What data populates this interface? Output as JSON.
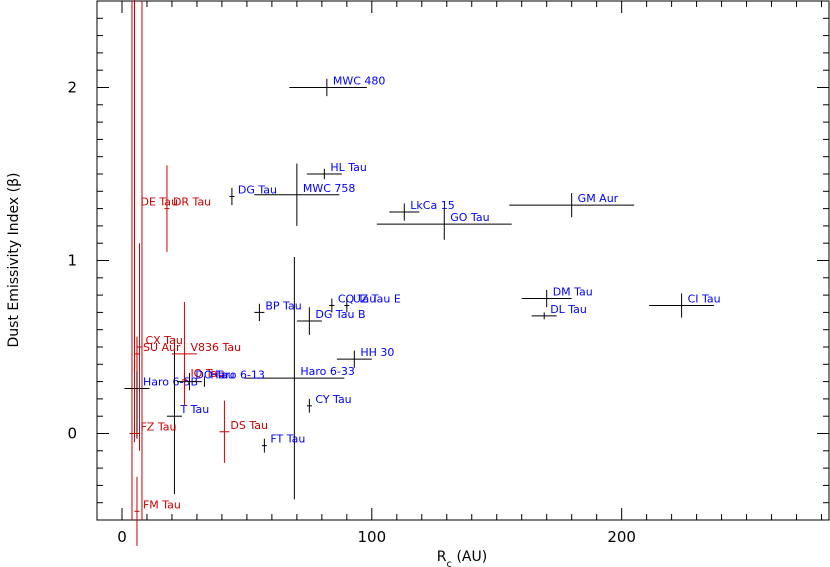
{
  "chart_data": {
    "type": "scatter",
    "title": "",
    "xlabel": "R_c (AU)",
    "xlabel_main": "R",
    "xlabel_sub": "c",
    "xlabel_unit": " (AU)",
    "ylabel": "Dust Emissivity Index (β)",
    "xlim": [
      -10,
      283
    ],
    "ylim": [
      -0.5,
      2.5
    ],
    "x_ticks": [
      0,
      100,
      200
    ],
    "y_ticks": [
      0,
      1,
      2
    ],
    "x_minor_step": 10,
    "y_minor_step": 0.1,
    "grid": false,
    "legend": "none",
    "colors": {
      "black": "#000000",
      "blue": "#0000ff",
      "red": "#cc0000",
      "red_line": "#cc0000"
    },
    "points": [
      {
        "name": "MWC 480",
        "x": 82,
        "y": 2.0,
        "xerr": [
          15,
          16
        ],
        "yerr": [
          0.05,
          0.05
        ],
        "color": "black",
        "label_color": "blue",
        "label_offset": "right-up"
      },
      {
        "name": "HL Tau",
        "x": 81,
        "y": 1.5,
        "xerr": [
          7,
          7
        ],
        "yerr": [
          0.03,
          0.03
        ],
        "color": "black",
        "label_color": "blue",
        "label_offset": "right-up"
      },
      {
        "name": "DG Tau",
        "x": 44,
        "y": 1.37,
        "xerr": [
          1,
          1
        ],
        "yerr": [
          0.05,
          0.05
        ],
        "color": "black",
        "label_color": "blue",
        "label_offset": "right-up"
      },
      {
        "name": "MWC 758",
        "x": 70,
        "y": 1.38,
        "xerr": [
          17,
          17
        ],
        "yerr": [
          0.18,
          0.18
        ],
        "color": "black",
        "label_color": "blue",
        "label_offset": "right-up"
      },
      {
        "name": "LkCa 15",
        "x": 113,
        "y": 1.28,
        "xerr": [
          6,
          6
        ],
        "yerr": [
          0.05,
          0.05
        ],
        "color": "black",
        "label_color": "blue",
        "label_offset": "right-up"
      },
      {
        "name": "GO Tau",
        "x": 129,
        "y": 1.21,
        "xerr": [
          27,
          27
        ],
        "yerr": [
          0.09,
          0.09
        ],
        "color": "black",
        "label_color": "blue",
        "label_offset": "right-up"
      },
      {
        "name": "GM Aur",
        "x": 180,
        "y": 1.32,
        "xerr": [
          25,
          25
        ],
        "yerr": [
          0.07,
          0.07
        ],
        "color": "black",
        "label_color": "blue",
        "label_offset": "right-up"
      },
      {
        "name": "DM Tau",
        "x": 170,
        "y": 0.78,
        "xerr": [
          10,
          10
        ],
        "yerr": [
          0.05,
          0.05
        ],
        "color": "black",
        "label_color": "blue",
        "label_offset": "right-up"
      },
      {
        "name": "DL Tau",
        "x": 169,
        "y": 0.68,
        "xerr": [
          5,
          5
        ],
        "yerr": [
          0.02,
          0.02
        ],
        "color": "black",
        "label_color": "blue",
        "label_offset": "right-up"
      },
      {
        "name": "CI Tau",
        "x": 224,
        "y": 0.74,
        "xerr": [
          13,
          13
        ],
        "yerr": [
          0.07,
          0.07
        ],
        "color": "black",
        "label_color": "blue",
        "label_offset": "right-up"
      },
      {
        "name": "BP Tau",
        "x": 55,
        "y": 0.7,
        "xerr": [
          2,
          2
        ],
        "yerr": [
          0.05,
          0.05
        ],
        "color": "black",
        "label_color": "blue",
        "label_offset": "right-up"
      },
      {
        "name": "CQ Tau",
        "x": 84,
        "y": 0.74,
        "xerr": [
          1,
          1
        ],
        "yerr": [
          0.04,
          0.04
        ],
        "color": "black",
        "label_color": "blue",
        "label_offset": "right-up"
      },
      {
        "name": "UZ Tau E",
        "x": 90,
        "y": 0.74,
        "xerr": [
          1,
          1
        ],
        "yerr": [
          0.04,
          0.04
        ],
        "color": "black",
        "label_color": "blue",
        "label_offset": "right-up"
      },
      {
        "name": "DG Tau B",
        "x": 75,
        "y": 0.65,
        "xerr": [
          5,
          5
        ],
        "yerr": [
          0.08,
          0.08
        ],
        "color": "black",
        "label_color": "blue",
        "label_offset": "right-up"
      },
      {
        "name": "HH 30",
        "x": 93,
        "y": 0.43,
        "xerr": [
          7,
          7
        ],
        "yerr": [
          0.05,
          0.05
        ],
        "color": "black",
        "label_color": "blue",
        "label_offset": "right-up"
      },
      {
        "name": "Haro 6-33",
        "x": 69,
        "y": 0.32,
        "xerr": [
          20,
          20
        ],
        "yerr": [
          0.7,
          0.7
        ],
        "color": "black",
        "label_color": "blue",
        "label_offset": "right-up"
      },
      {
        "name": "Haro 6-13",
        "x": 33,
        "y": 0.3,
        "xerr": [
          0,
          0
        ],
        "yerr": [
          0.03,
          0.03
        ],
        "color": "black",
        "label_color": "blue",
        "label_offset": "right-up"
      },
      {
        "name": "Haro 6-5B",
        "x": 6,
        "y": 0.26,
        "xerr": [
          5,
          5
        ],
        "yerr": [
          0.29,
          0.29
        ],
        "color": "black",
        "label_color": "blue",
        "label_offset": "right-up"
      },
      {
        "name": "CY Tau",
        "x": 75,
        "y": 0.16,
        "xerr": [
          1,
          1
        ],
        "yerr": [
          0.04,
          0.04
        ],
        "color": "black",
        "label_color": "blue",
        "label_offset": "right-up"
      },
      {
        "name": "T Tau",
        "x": 21,
        "y": 0.1,
        "xerr": [
          3,
          3
        ],
        "yerr": [
          0.45,
          0.45
        ],
        "color": "black",
        "label_color": "blue",
        "label_offset": "right-up"
      },
      {
        "name": "FT Tau",
        "x": 57,
        "y": -0.07,
        "xerr": [
          1,
          1
        ],
        "yerr": [
          0.04,
          0.04
        ],
        "color": "black",
        "label_color": "blue",
        "label_offset": "right-up"
      },
      {
        "name": "DE Tau",
        "x": 5,
        "y": 1.3,
        "xerr": [
          0,
          0
        ],
        "yerr": [
          1.3,
          1.3
        ],
        "color": "red",
        "label_color": "red",
        "label_offset": "right-up"
      },
      {
        "name": "DR Tau",
        "x": 18,
        "y": 1.3,
        "xerr": [
          1,
          1
        ],
        "yerr": [
          0.25,
          0.25
        ],
        "color": "red",
        "label_color": "red",
        "label_offset": "right-up"
      },
      {
        "name": "CX Tau",
        "x": 7,
        "y": 0.5,
        "xerr": [
          1,
          1
        ],
        "yerr": [
          0.6,
          0.6
        ],
        "color": "red",
        "label_color": "red",
        "label_offset": "right-up"
      },
      {
        "name": "SU Aur",
        "x": 6,
        "y": 0.46,
        "xerr": [
          1,
          1
        ],
        "yerr": [
          0.1,
          0.1
        ],
        "color": "red",
        "label_color": "red",
        "label_offset": "right-up"
      },
      {
        "name": "V836 Tau",
        "x": 25,
        "y": 0.46,
        "xerr": [
          5,
          5
        ],
        "yerr": [
          0.3,
          0.3
        ],
        "color": "red",
        "label_color": "red",
        "label_offset": "right-up"
      },
      {
        "name": "IQ Tau",
        "x": 25,
        "y": 0.31,
        "xerr": [
          1,
          1
        ],
        "yerr": [
          0.05,
          0.05
        ],
        "color": "red",
        "label_color": "red",
        "label_offset": "right-up"
      },
      {
        "name": "DO Tau",
        "x": 27,
        "y": 0.3,
        "xerr": [
          5,
          5
        ],
        "yerr": [
          0.05,
          0.05
        ],
        "color": "black",
        "label_color": "blue",
        "label_offset": "right-up"
      },
      {
        "name": "FZ Tau",
        "x": 5,
        "y": 0.0,
        "xerr": [
          2,
          2
        ],
        "yerr": [
          0.05,
          0.05
        ],
        "color": "red",
        "label_color": "red",
        "label_offset": "right-up"
      },
      {
        "name": "DS Tau",
        "x": 41,
        "y": 0.01,
        "xerr": [
          2,
          2
        ],
        "yerr": [
          0.18,
          0.18
        ],
        "color": "red",
        "label_color": "red",
        "label_offset": "right-up"
      },
      {
        "name": "FM Tau",
        "x": 6,
        "y": -0.45,
        "xerr": [
          1,
          1
        ],
        "yerr": [
          0.2,
          0.2
        ],
        "color": "red",
        "label_color": "red",
        "label_offset": "right-up"
      }
    ],
    "vertical_lines": [
      {
        "x": 4,
        "color": "red_line"
      },
      {
        "x": 8,
        "color": "red_line"
      }
    ]
  }
}
